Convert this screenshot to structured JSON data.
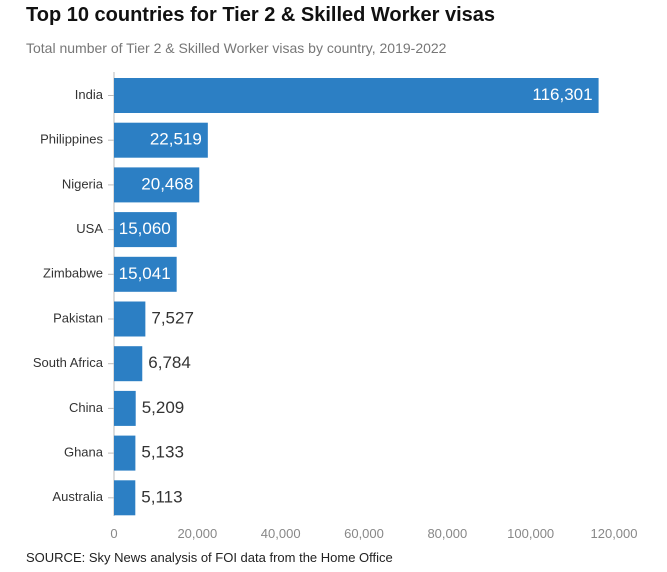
{
  "colors": {
    "bar": "#2c7fc4",
    "axis": "#bbbbbb",
    "label_inside": "#ffffff",
    "label_outside": "#333333",
    "tick": "#888888",
    "category": "#333333"
  },
  "chart_data": {
    "type": "bar",
    "orientation": "horizontal",
    "title": "Top 10 countries for Tier 2 & Skilled Worker visas",
    "subtitle": "Total number of Tier 2 & Skilled Worker visas by country, 2019-2022",
    "source": "SOURCE: Sky News analysis of FOI data from the Home Office",
    "categories": [
      "India",
      "Philippines",
      "Nigeria",
      "USA",
      "Zimbabwe",
      "Pakistan",
      "South Africa",
      "China",
      "Ghana",
      "Australia"
    ],
    "values": [
      116301,
      22519,
      20468,
      15060,
      15041,
      7527,
      6784,
      5209,
      5133,
      5113
    ],
    "value_labels": [
      "116,301",
      "22,519",
      "20,468",
      "15,060",
      "15,041",
      "7,527",
      "6,784",
      "5,209",
      "5,133",
      "5,113"
    ],
    "xlim": [
      0,
      120000
    ],
    "xticks": [
      0,
      20000,
      40000,
      60000,
      80000,
      100000,
      120000
    ],
    "xtick_labels": [
      "0",
      "20,000",
      "40,000",
      "60,000",
      "80,000",
      "100,000",
      "120,000"
    ],
    "grid": false,
    "legend": "none"
  }
}
